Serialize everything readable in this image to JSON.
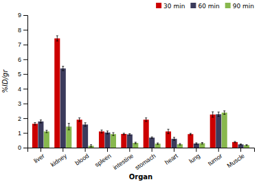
{
  "chart_data": {
    "type": "bar",
    "xlabel": "Organ",
    "ylabel": "%ID/gr",
    "categories": [
      "liver",
      "kidney",
      "blood",
      "spleen",
      "intestine",
      "stomach",
      "heart",
      "lung",
      "tumor",
      "Muscle"
    ],
    "series": [
      {
        "name": "30 min",
        "color": "#cc0000",
        "values": [
          1.62,
          7.42,
          1.9,
          1.1,
          0.93,
          1.9,
          1.1,
          0.92,
          2.25,
          0.38
        ],
        "errors": [
          0.08,
          0.18,
          0.12,
          0.1,
          0.05,
          0.12,
          0.15,
          0.05,
          0.18,
          0.04
        ]
      },
      {
        "name": "60 min",
        "color": "#3b3b5c",
        "values": [
          1.78,
          5.38,
          1.57,
          1.03,
          0.9,
          0.68,
          0.6,
          0.28,
          2.27,
          0.22
        ],
        "errors": [
          0.1,
          0.15,
          0.12,
          0.1,
          0.05,
          0.05,
          0.1,
          0.05,
          0.15,
          0.03
        ]
      },
      {
        "name": "90 min",
        "color": "#88b84e",
        "values": [
          1.1,
          1.43,
          0.13,
          0.92,
          0.32,
          0.27,
          0.23,
          0.3,
          2.38,
          0.17
        ],
        "errors": [
          0.08,
          0.22,
          0.07,
          0.1,
          0.05,
          0.05,
          0.05,
          0.05,
          0.12,
          0.03
        ]
      }
    ],
    "ylim": [
      0,
      9
    ],
    "yticks": [
      0,
      1,
      2,
      3,
      4,
      5,
      6,
      7,
      8,
      9
    ],
    "legend": "upper right",
    "grid": false
  }
}
